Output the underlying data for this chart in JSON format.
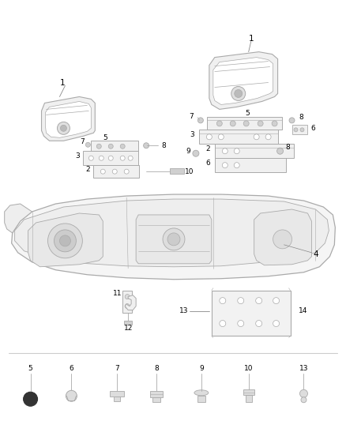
{
  "bg_color": "#ffffff",
  "line_color": "#aaaaaa",
  "dark_line": "#888888",
  "thin_line": "#bbbbbb",
  "text_color": "#000000",
  "label_fontsize": 7.5,
  "small_fontsize": 6.5
}
